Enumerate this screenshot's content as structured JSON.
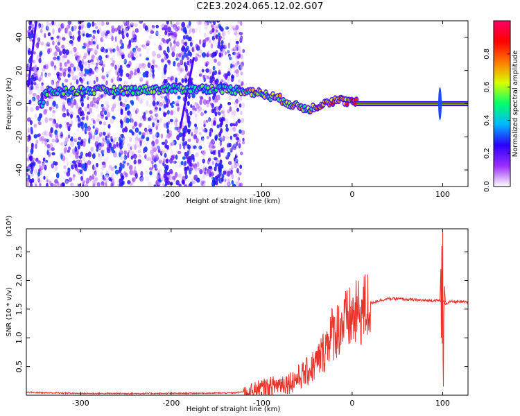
{
  "title": "C2E3.2024.065.12.02.G07",
  "chart_data": [
    {
      "type": "heatmap",
      "xlabel": "Height of straight line (km)",
      "ylabel": "Frequency (Hz)",
      "xlim": [
        -360,
        128
      ],
      "ylim": [
        -50,
        50
      ],
      "x_ticks": [
        -300,
        -200,
        -100,
        0,
        100
      ],
      "y_ticks": [
        -40,
        -20,
        0,
        20,
        40
      ],
      "colorbar": {
        "label": "Normalized spectral amplitude",
        "range": [
          0,
          1
        ],
        "ticks": [
          "0.0",
          "0.2",
          "0.4",
          "0.6",
          "0.8"
        ],
        "colormap": [
          "#ffffff",
          "#9a2cff",
          "#2b00ff",
          "#00b7ff",
          "#00ff6a",
          "#d8ff00",
          "#ff7a00",
          "#ff0000",
          "#ff0066"
        ]
      },
      "features": [
        {
          "name": "broadband noise region",
          "x_range": [
            -360,
            -120
          ],
          "freq_range": [
            -50,
            50
          ]
        },
        {
          "name": "main signal ridge",
          "points": [
            [
              -340,
              7
            ],
            [
              -300,
              8
            ],
            [
              -250,
              8
            ],
            [
              -200,
              9
            ],
            [
              -150,
              9
            ],
            [
              -120,
              8
            ],
            [
              -100,
              6
            ],
            [
              -80,
              3
            ],
            [
              -60,
              -2
            ],
            [
              -45,
              -3
            ],
            [
              -30,
              1
            ],
            [
              -15,
              2
            ],
            [
              0,
              1
            ],
            [
              128,
              0
            ]
          ]
        },
        {
          "name": "steady tone",
          "x_range": [
            5,
            128
          ],
          "freq": 0,
          "amplitude": 0.95
        },
        {
          "name": "transient",
          "x": 97,
          "freq_range": [
            -10,
            10
          ]
        }
      ]
    },
    {
      "type": "line",
      "xlabel": "Height of straight line (km)",
      "ylabel": "SNR (10 * v/v)",
      "y_multiplier": "(x10⁴)",
      "xlim": [
        -360,
        128
      ],
      "ylim": [
        0,
        2.9
      ],
      "x_ticks": [
        -300,
        -200,
        -100,
        0,
        100
      ],
      "y_ticks": [
        "0.5",
        "1.0",
        "1.5",
        "2.0",
        "2.5"
      ],
      "series": [
        {
          "color": "#e8332b",
          "x": [
            -360,
            -300,
            -200,
            -130,
            -110,
            -100,
            -90,
            -80,
            -70,
            -60,
            -50,
            -40,
            -30,
            -25,
            -20,
            -10,
            0,
            10,
            20,
            30,
            40,
            50,
            60,
            70,
            80,
            90,
            95,
            100,
            103,
            110,
            128
          ],
          "y": [
            0.05,
            0.03,
            0.03,
            0.04,
            0.08,
            0.12,
            0.15,
            0.2,
            0.22,
            0.3,
            0.4,
            0.55,
            0.8,
            1.05,
            1.1,
            1.25,
            1.35,
            1.45,
            1.6,
            1.65,
            1.68,
            1.68,
            1.67,
            1.66,
            1.65,
            1.65,
            1.65,
            1.65,
            1.6,
            1.63,
            1.62
          ]
        }
      ],
      "annotations": [
        {
          "x": 100,
          "kind": "spike",
          "y_max": 2.9,
          "y_min": 0.15
        }
      ]
    }
  ]
}
